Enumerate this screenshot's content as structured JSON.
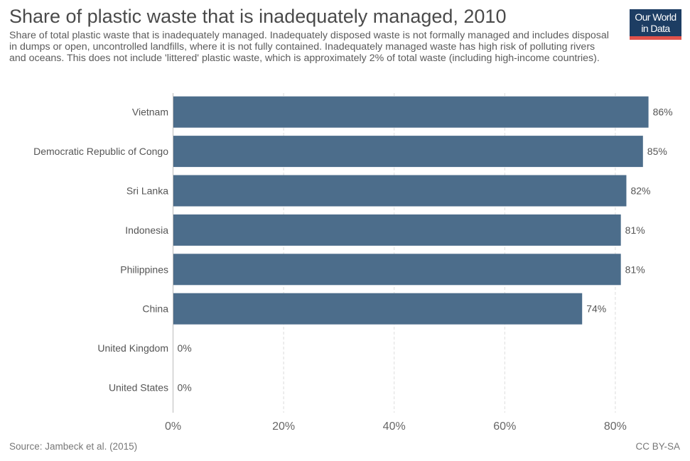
{
  "header": {
    "title": "Share of plastic waste that is inadequately managed, 2010",
    "subtitle": "Share of total plastic waste that is inadequately managed. Inadequately disposed waste is not formally managed and includes disposal in dumps or open, uncontrolled landfills, where it is not fully contained. Inadequately managed waste has high risk of polluting rivers and oceans. This does not include 'littered' plastic waste, which is approximately 2% of total waste (including high-income countries)."
  },
  "logo": {
    "line1": "Our World",
    "line2": "in Data",
    "background_color": "#1d3d63",
    "accent_color": "#e1524b"
  },
  "footer": {
    "source": "Source: Jambeck et al. (2015)",
    "license": "CC BY-SA"
  },
  "colors": {
    "bar": "#4c6d8b",
    "grid": "#dddddd",
    "axis": "#555555",
    "text": "#555555"
  },
  "chart_data": {
    "type": "bar",
    "orientation": "horizontal",
    "title": "Share of plastic waste that is inadequately managed, 2010",
    "categories": [
      "Vietnam",
      "Democratic Republic of Congo",
      "Sri Lanka",
      "Indonesia",
      "Philippines",
      "China",
      "United Kingdom",
      "United States"
    ],
    "values": [
      86,
      85,
      82,
      81,
      81,
      74,
      0,
      0
    ],
    "value_labels": [
      "86%",
      "85%",
      "82%",
      "81%",
      "81%",
      "74%",
      "0%",
      "0%"
    ],
    "xlim": [
      0,
      88
    ],
    "xticks": [
      0,
      20,
      40,
      60,
      80
    ],
    "xtick_labels": [
      "0%",
      "20%",
      "40%",
      "60%",
      "80%"
    ],
    "xlabel": "",
    "ylabel": "",
    "grid": "vertical dashed",
    "legend": "none"
  }
}
